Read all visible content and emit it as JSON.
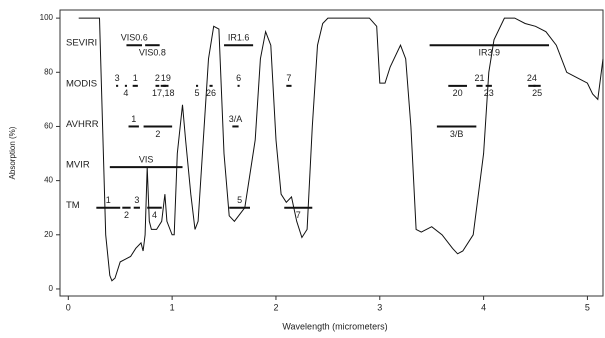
{
  "chart_data": {
    "type": "line",
    "xlabel": "Wavelength (micrometers)",
    "ylabel": "Absorption (%)",
    "color": "#111111",
    "xlim": [
      -0.08,
      5.15
    ],
    "ylim": [
      -2.6,
      103
    ],
    "xticks": [
      0,
      1,
      2,
      3,
      4,
      5
    ],
    "yticks": [
      0,
      20,
      40,
      60,
      80,
      100
    ],
    "x": [
      0.1,
      0.3,
      0.33,
      0.36,
      0.4,
      0.42,
      0.45,
      0.5,
      0.55,
      0.6,
      0.65,
      0.7,
      0.72,
      0.74,
      0.76,
      0.78,
      0.8,
      0.85,
      0.9,
      0.93,
      0.95,
      1.0,
      1.02,
      1.05,
      1.1,
      1.13,
      1.18,
      1.22,
      1.25,
      1.3,
      1.35,
      1.4,
      1.45,
      1.5,
      1.55,
      1.6,
      1.7,
      1.8,
      1.85,
      1.9,
      1.95,
      2.0,
      2.05,
      2.1,
      2.15,
      2.2,
      2.25,
      2.3,
      2.35,
      2.4,
      2.45,
      2.5,
      2.6,
      2.9,
      2.97,
      3.0,
      3.05,
      3.1,
      3.2,
      3.25,
      3.3,
      3.35,
      3.4,
      3.5,
      3.6,
      3.7,
      3.75,
      3.8,
      3.9,
      4.0,
      4.05,
      4.1,
      4.2,
      4.3,
      4.4,
      4.5,
      4.6,
      4.7,
      4.8,
      4.9,
      5.0,
      5.05,
      5.1,
      5.15
    ],
    "values": [
      100,
      100,
      60,
      20,
      5,
      3,
      4,
      10,
      11,
      12,
      15,
      17,
      14,
      20,
      45,
      25,
      22,
      22,
      25,
      35,
      25,
      20,
      20,
      50,
      68,
      55,
      35,
      22,
      25,
      55,
      85,
      97,
      96,
      50,
      27,
      25,
      30,
      55,
      85,
      95,
      90,
      55,
      35,
      32,
      34,
      25,
      19,
      22,
      60,
      90,
      98,
      100,
      100,
      100,
      97,
      76,
      76,
      82,
      90,
      85,
      60,
      22,
      21,
      23,
      20,
      15,
      13,
      14,
      20,
      50,
      80,
      92,
      100,
      100,
      98,
      97,
      95,
      90,
      80,
      78,
      76,
      72,
      70,
      85
    ],
    "sensors": [
      {
        "name": "SEVIRI",
        "y": 90,
        "bands": [
          {
            "label": "VIS0.6",
            "start": 0.56,
            "end": 0.71
          },
          {
            "label": "VIS0.8",
            "start": 0.74,
            "end": 0.88
          },
          {
            "label": "IR1.6",
            "start": 1.5,
            "end": 1.78
          },
          {
            "label": "IR3.9",
            "start": 3.48,
            "end": 4.63
          }
        ]
      },
      {
        "name": "MODIS",
        "y": 75,
        "bands": [
          {
            "label": "3",
            "start": 0.46,
            "end": 0.48
          },
          {
            "label": "4",
            "start": 0.545,
            "end": 0.565
          },
          {
            "label": "1",
            "start": 0.62,
            "end": 0.67
          },
          {
            "label": "17,18",
            "start": 0.89,
            "end": 0.94
          },
          {
            "label": "2",
            "start": 0.84,
            "end": 0.876
          },
          {
            "label": "26",
            "start": 1.36,
            "end": 1.39
          },
          {
            "label": "19",
            "start": 0.915,
            "end": 0.965
          },
          {
            "label": "5",
            "start": 1.23,
            "end": 1.25
          },
          {
            "label": "6",
            "start": 1.63,
            "end": 1.65
          },
          {
            "label": "20",
            "start": 3.66,
            "end": 3.84
          },
          {
            "label": "7",
            "start": 2.1,
            "end": 2.15
          },
          {
            "label": "23",
            "start": 4.02,
            "end": 4.08
          },
          {
            "label": "21",
            "start": 3.93,
            "end": 3.99
          },
          {
            "label": "25",
            "start": 4.48,
            "end": 4.55
          },
          {
            "label": "24",
            "start": 4.43,
            "end": 4.5
          }
        ]
      },
      {
        "name": "AVHRR",
        "y": 60,
        "bands": [
          {
            "label": "1",
            "start": 0.58,
            "end": 0.68
          },
          {
            "label": "2",
            "start": 0.725,
            "end": 1.0
          },
          {
            "label": "3/A",
            "start": 1.58,
            "end": 1.64
          },
          {
            "label": "3/B",
            "start": 3.55,
            "end": 3.93
          }
        ]
      },
      {
        "name": "MVIR",
        "y": 45,
        "bands": [
          {
            "label": "VIS",
            "start": 0.4,
            "end": 1.1
          }
        ]
      },
      {
        "name": "TM",
        "y": 30,
        "bands": [
          {
            "label": "1",
            "start": 0.27,
            "end": 0.5
          },
          {
            "label": "2",
            "start": 0.52,
            "end": 0.6
          },
          {
            "label": "3",
            "start": 0.63,
            "end": 0.69
          },
          {
            "label": "4",
            "start": 0.76,
            "end": 0.9
          },
          {
            "label": "5",
            "start": 1.55,
            "end": 1.75
          },
          {
            "label": "7",
            "start": 2.08,
            "end": 2.35
          }
        ]
      }
    ]
  }
}
